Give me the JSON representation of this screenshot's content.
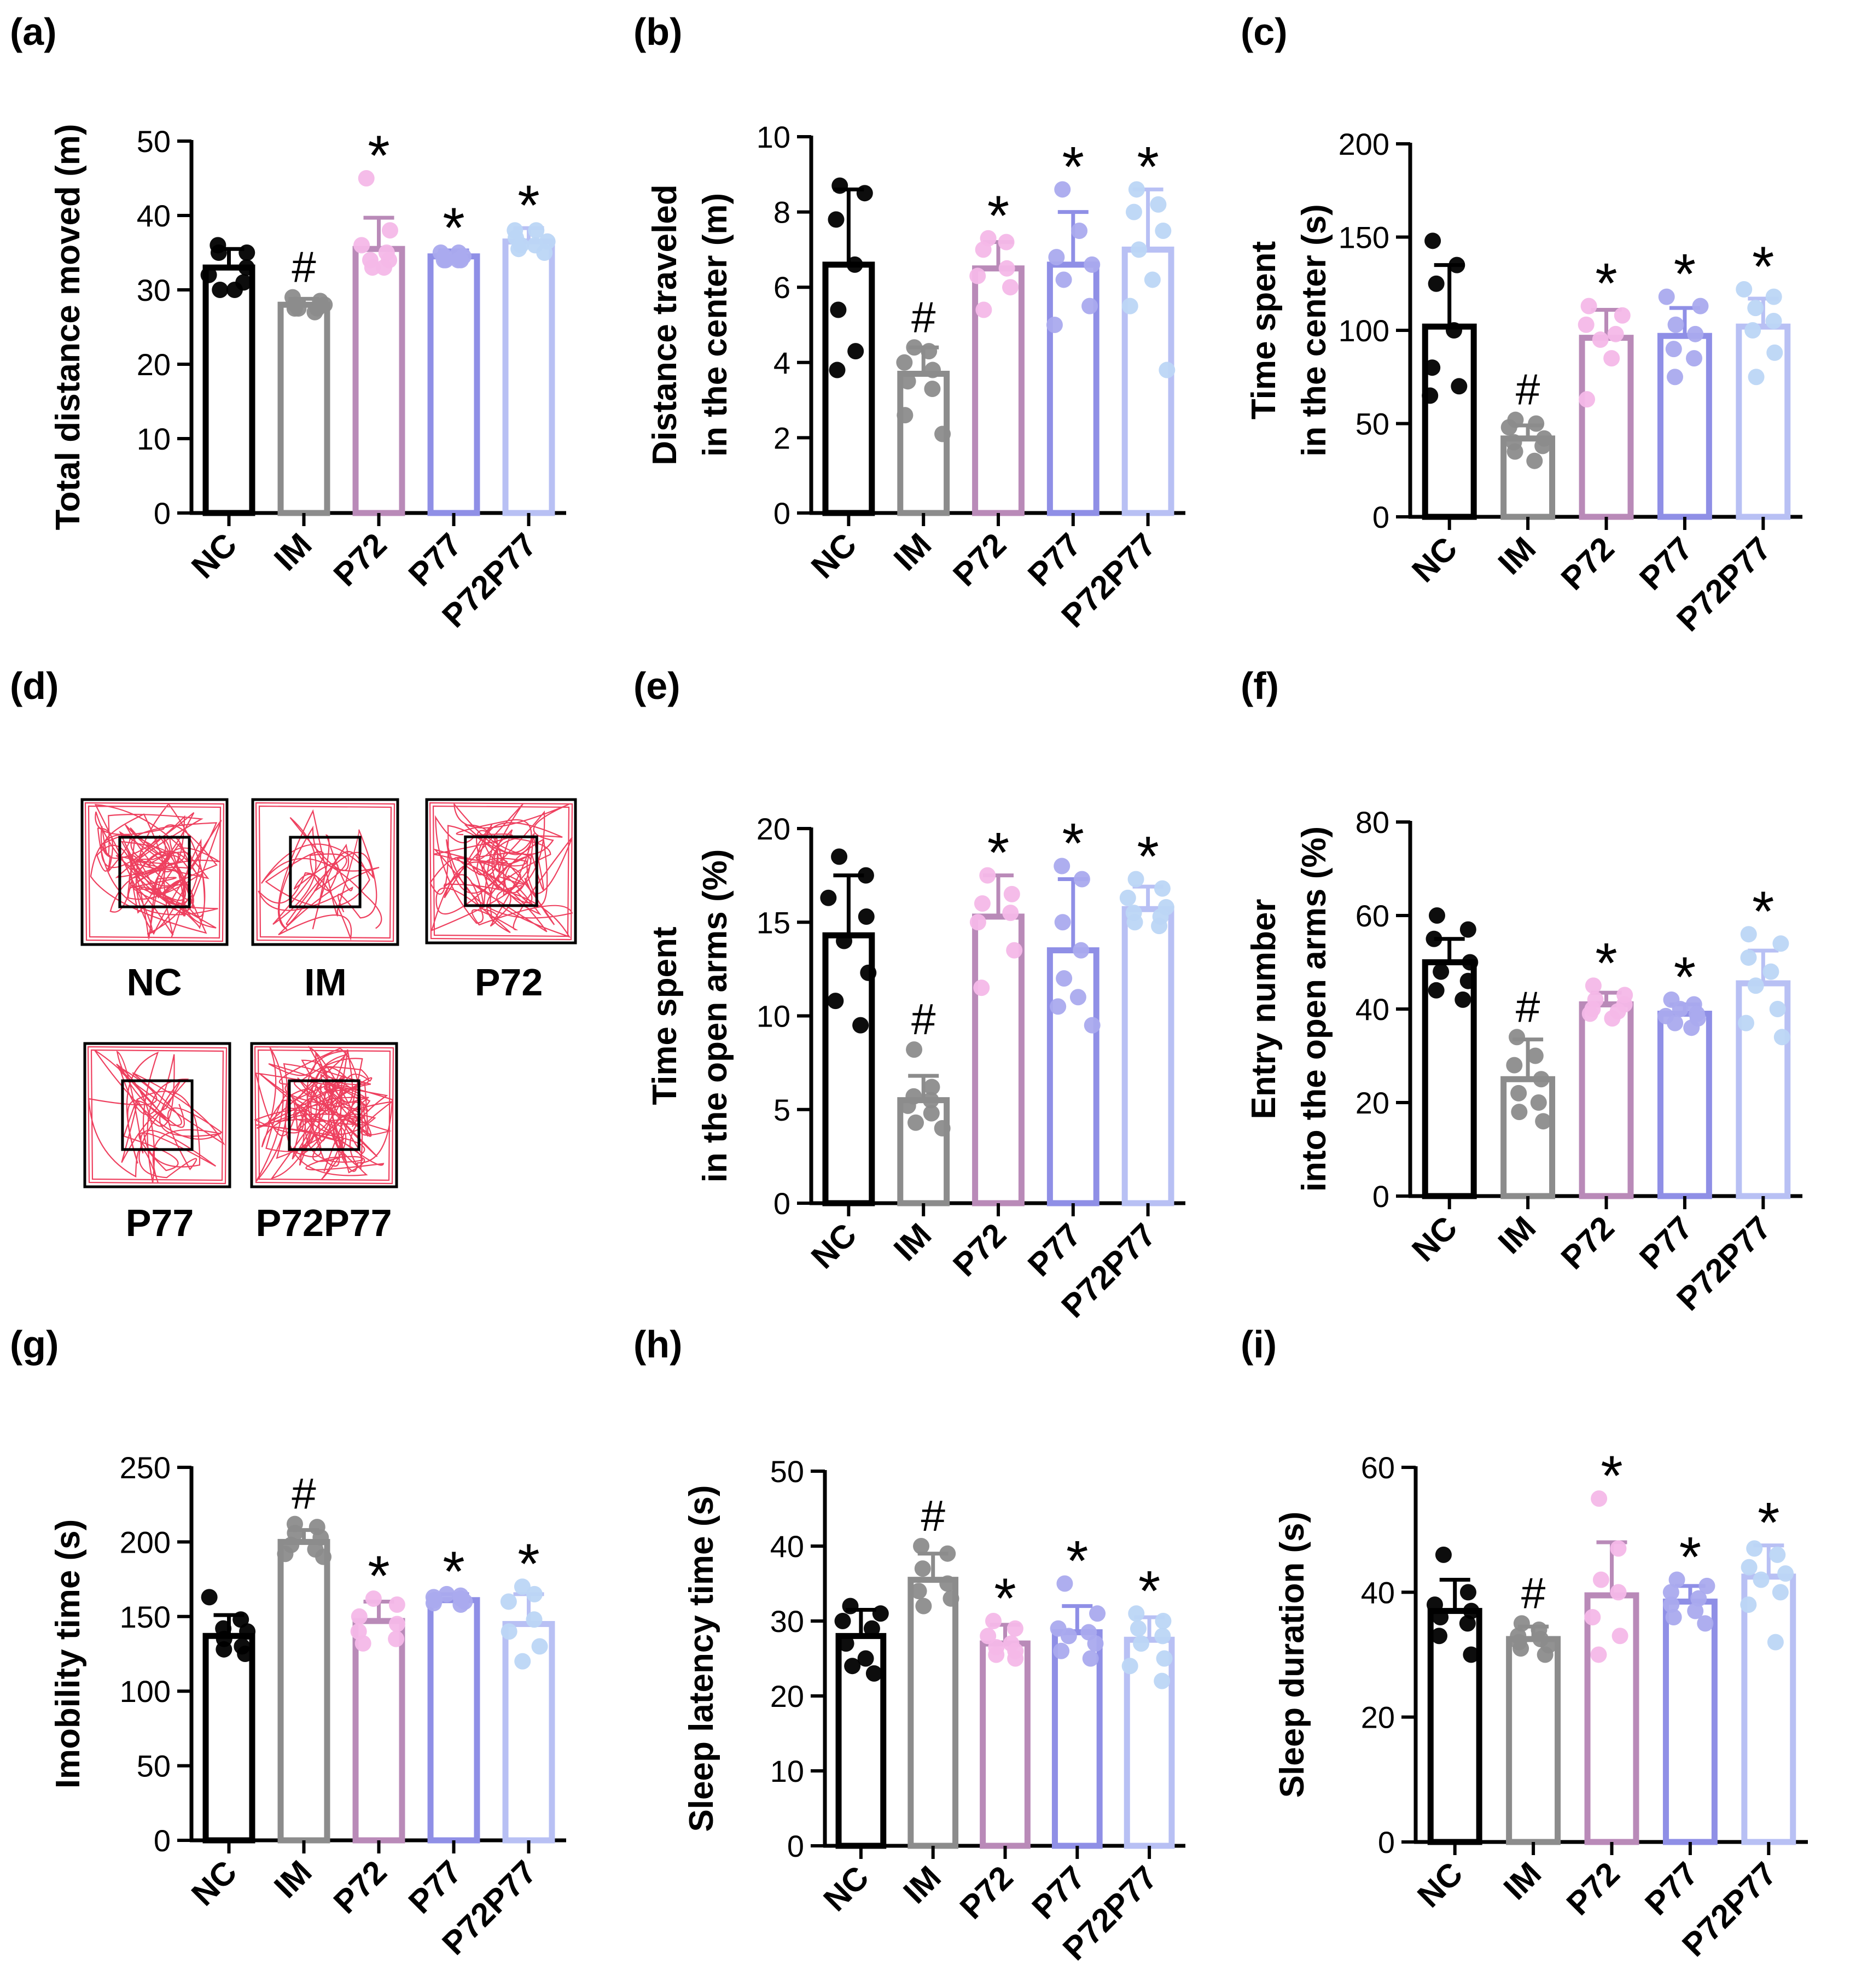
{
  "figure": {
    "panel_letters": [
      "(a)",
      "(b)",
      "(c)",
      "(d)",
      "(e)",
      "(f)",
      "(g)",
      "(h)",
      "(i)"
    ]
  },
  "groups": [
    "NC",
    "IM",
    "P72",
    "P77",
    "P72P77"
  ],
  "colors": {
    "NC": "#000000",
    "IM": "#8c8c8c",
    "P72": "#b98ab8",
    "P72_dots": "#f4b8e8",
    "P77": "#8f8fe6",
    "P77_dots": "#aaaaee",
    "P72P77": "#b8c0f4",
    "P72P77_dots": "#bcd6f6",
    "trace": "#e8002a"
  },
  "chart_data": [
    {
      "panel": "(a)",
      "type": "bar",
      "title": "",
      "xlabel": "",
      "ylabel": [
        "Total distance moved (m)"
      ],
      "categories": [
        "NC",
        "IM",
        "P72",
        "P77",
        "P72P77"
      ],
      "ylim": [
        0,
        50
      ],
      "yticks": [
        0,
        10,
        20,
        30,
        40,
        50
      ],
      "values": [
        33,
        28,
        35.5,
        34.5,
        36.5
      ],
      "sd": [
        2.5,
        0.8,
        4.2,
        0.8,
        1.8
      ],
      "points": [
        [
          36,
          35,
          35,
          33,
          32,
          31,
          30,
          30
        ],
        [
          29,
          28.5,
          28,
          28,
          27.5,
          27.5,
          27.5,
          27
        ],
        [
          45,
          38,
          36,
          35,
          34,
          34,
          33,
          33
        ],
        [
          35,
          35,
          34.5,
          34.5,
          34,
          34,
          34,
          34
        ],
        [
          38,
          38,
          37,
          36.5,
          36,
          36,
          35.5,
          35
        ]
      ],
      "markers": [
        "",
        "#",
        "*",
        "*",
        "*"
      ]
    },
    {
      "panel": "(b)",
      "type": "bar",
      "title": "",
      "xlabel": "",
      "ylabel": [
        "Distance traveled",
        "in the center (m)"
      ],
      "categories": [
        "NC",
        "IM",
        "P72",
        "P77",
        "P72P77"
      ],
      "ylim": [
        0,
        10
      ],
      "yticks": [
        0,
        2,
        4,
        6,
        8,
        10
      ],
      "values": [
        6.6,
        3.7,
        6.5,
        6.6,
        7.0
      ],
      "sd": [
        2.0,
        0.7,
        0.7,
        1.4,
        1.6
      ],
      "points": [
        [
          8.7,
          8.5,
          7.8,
          6.6,
          5.4,
          4.3,
          3.8
        ],
        [
          4.4,
          4.3,
          4.0,
          3.8,
          3.5,
          3.3,
          2.6,
          2.1
        ],
        [
          7.3,
          7.2,
          7.0,
          6.5,
          6.3,
          6.0,
          5.4
        ],
        [
          8.6,
          7.5,
          6.8,
          6.6,
          6.2,
          5.5,
          5.0
        ],
        [
          8.6,
          8.2,
          8.0,
          7.5,
          7.0,
          6.2,
          5.5,
          3.8
        ]
      ],
      "markers": [
        "",
        "#",
        "*",
        "*",
        "*"
      ]
    },
    {
      "panel": "(c)",
      "type": "bar",
      "title": "",
      "xlabel": "",
      "ylabel": [
        "Time spent",
        "in the center (s)"
      ],
      "categories": [
        "NC",
        "IM",
        "P72",
        "P77",
        "P72P77"
      ],
      "ylim": [
        0,
        200
      ],
      "yticks": [
        0,
        50,
        100,
        150,
        200
      ],
      "values": [
        102,
        42,
        96,
        97,
        102
      ],
      "sd": [
        33,
        7,
        15,
        15,
        15
      ],
      "points": [
        [
          148,
          135,
          125,
          100,
          80,
          70,
          65
        ],
        [
          52,
          50,
          48,
          42,
          40,
          38,
          35,
          30
        ],
        [
          113,
          108,
          103,
          98,
          95,
          85,
          63
        ],
        [
          118,
          113,
          103,
          98,
          90,
          85,
          75
        ],
        [
          122,
          118,
          112,
          105,
          100,
          88,
          75
        ]
      ],
      "markers": [
        "",
        "#",
        "*",
        "*",
        "*"
      ]
    },
    {
      "panel": "(e)",
      "type": "bar",
      "title": "",
      "xlabel": "",
      "ylabel": [
        "Time spent",
        "in the open arms (%)"
      ],
      "categories": [
        "NC",
        "IM",
        "P72",
        "P77",
        "P72P77"
      ],
      "ylim": [
        0,
        20
      ],
      "yticks": [
        0,
        5,
        10,
        15,
        20
      ],
      "values": [
        14.3,
        5.5,
        15.3,
        13.5,
        15.7
      ],
      "sd": [
        3.2,
        1.3,
        2.2,
        3.8,
        1.2
      ],
      "points": [
        [
          18.5,
          17.5,
          16.3,
          15.3,
          14.0,
          12.3,
          10.8,
          9.5
        ],
        [
          8.2,
          6.2,
          5.7,
          5.5,
          5.2,
          4.8,
          4.3,
          4.0
        ],
        [
          17.5,
          16.5,
          16.0,
          15.5,
          15.0,
          13.5,
          11.5
        ],
        [
          18.0,
          17.3,
          15.0,
          13.5,
          12.0,
          11.0,
          10.5,
          9.5
        ],
        [
          17.3,
          16.8,
          16.3,
          15.8,
          15.5,
          15.3,
          15.0,
          14.8
        ]
      ],
      "markers": [
        "",
        "#",
        "*",
        "*",
        "*"
      ]
    },
    {
      "panel": "(f)",
      "type": "bar",
      "title": "",
      "xlabel": "",
      "ylabel": [
        "Entry number",
        "into the open arms (%)"
      ],
      "categories": [
        "NC",
        "IM",
        "P72",
        "P77",
        "P72P77"
      ],
      "ylim": [
        0,
        80
      ],
      "yticks": [
        0,
        20,
        40,
        60,
        80
      ],
      "values": [
        50,
        25,
        41,
        39,
        45.5
      ],
      "sd": [
        5,
        8.5,
        2.5,
        2,
        7
      ],
      "points": [
        [
          60,
          57,
          55,
          50,
          48,
          46,
          44,
          42
        ],
        [
          34,
          30,
          28,
          25,
          22,
          20,
          18,
          16
        ],
        [
          45,
          43,
          42,
          41,
          40,
          39.5,
          39,
          38
        ],
        [
          42,
          41,
          40,
          39,
          38.5,
          38,
          37,
          36
        ],
        [
          56,
          54,
          51,
          48,
          45,
          40,
          37,
          34
        ]
      ],
      "markers": [
        "",
        "#",
        "*",
        "*",
        "*"
      ]
    },
    {
      "panel": "(g)",
      "type": "bar",
      "title": "",
      "xlabel": "",
      "ylabel": [
        "Imobility time (s)"
      ],
      "categories": [
        "NC",
        "IM",
        "P72",
        "P77",
        "P72P77"
      ],
      "ylim": [
        0,
        250
      ],
      "yticks": [
        0,
        50,
        100,
        150,
        200,
        250
      ],
      "values": [
        137,
        200,
        147,
        161,
        145
      ],
      "sd": [
        14,
        8,
        13,
        4,
        20
      ],
      "points": [
        [
          163,
          148,
          142,
          140,
          135,
          130,
          128,
          125
        ],
        [
          212,
          210,
          206,
          203,
          198,
          195,
          192,
          190
        ],
        [
          162,
          158,
          150,
          145,
          140,
          135,
          132
        ],
        [
          165,
          164,
          163,
          162,
          161,
          160,
          159,
          158
        ],
        [
          170,
          165,
          160,
          148,
          140,
          130,
          120
        ]
      ],
      "markers": [
        "",
        "#",
        "*",
        "*",
        "*"
      ]
    },
    {
      "panel": "(h)",
      "type": "bar",
      "title": "",
      "xlabel": "",
      "ylabel": [
        "Sleep latency time (s)"
      ],
      "categories": [
        "NC",
        "IM",
        "P72",
        "P77",
        "P72P77"
      ],
      "ylim": [
        0,
        50
      ],
      "yticks": [
        0,
        10,
        20,
        30,
        40,
        50
      ],
      "values": [
        28,
        35.5,
        27,
        28.5,
        27.5
      ],
      "sd": [
        3.5,
        3.5,
        2.5,
        3.5,
        3.0
      ],
      "points": [
        [
          32,
          31,
          30,
          29,
          27,
          25,
          24,
          23
        ],
        [
          40,
          39,
          37,
          35,
          34,
          33,
          32
        ],
        [
          30,
          29,
          28,
          27,
          26.5,
          26,
          25.5,
          25
        ],
        [
          35,
          31,
          29,
          28.5,
          28,
          27,
          26,
          25
        ],
        [
          31,
          30,
          29,
          28,
          27,
          25,
          24,
          22
        ]
      ],
      "markers": [
        "",
        "#",
        "*",
        "*",
        "*"
      ]
    },
    {
      "panel": "(i)",
      "type": "bar",
      "title": "",
      "xlabel": "",
      "ylabel": [
        "Sleep duration (s)"
      ],
      "categories": [
        "NC",
        "IM",
        "P72",
        "P77",
        "P72P77"
      ],
      "ylim": [
        0,
        60
      ],
      "yticks": [
        0,
        20,
        40,
        60
      ],
      "values": [
        37,
        32.5,
        39.5,
        38.5,
        42.5
      ],
      "sd": [
        5,
        2,
        8.5,
        2.5,
        5
      ],
      "points": [
        [
          46,
          40,
          38,
          37,
          36,
          35,
          33,
          30
        ],
        [
          35,
          34,
          33,
          32.5,
          32,
          31.5,
          31,
          30
        ],
        [
          55,
          47,
          42,
          40,
          36,
          33,
          30
        ],
        [
          42,
          41,
          40,
          39,
          38,
          37,
          36,
          35
        ],
        [
          47,
          46,
          44,
          43,
          42,
          40,
          38,
          32
        ]
      ],
      "markers": [
        "",
        "#",
        "*",
        "*",
        "*"
      ]
    }
  ],
  "tracks": {
    "panel": "(d)",
    "labels": [
      "NC",
      "IM",
      "P72",
      "P77",
      "P72P77"
    ]
  }
}
